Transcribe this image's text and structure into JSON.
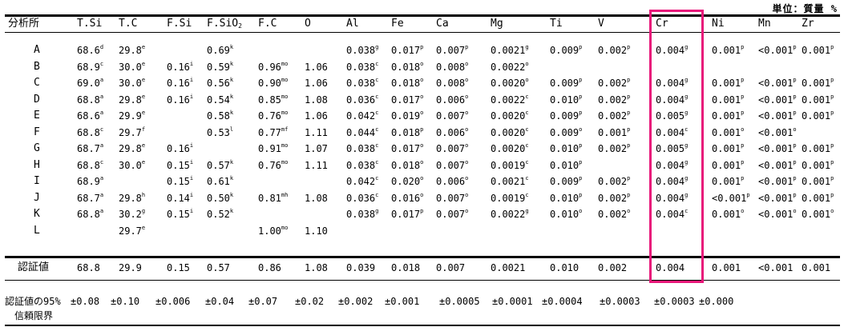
{
  "unit_label": "単位：質量 %",
  "headers": [
    {
      "key": "lab",
      "label": "分析所"
    },
    {
      "key": "tsi",
      "label": "T.Si"
    },
    {
      "key": "tc",
      "label": "T.C"
    },
    {
      "key": "fsi",
      "label": "F.Si"
    },
    {
      "key": "fsio2",
      "label": "F.SiO",
      "sub": "2"
    },
    {
      "key": "fc",
      "label": "F.C"
    },
    {
      "key": "o",
      "label": "O"
    },
    {
      "key": "al",
      "label": "Al"
    },
    {
      "key": "fe",
      "label": "Fe"
    },
    {
      "key": "ca",
      "label": "Ca"
    },
    {
      "key": "mg",
      "label": "Mg"
    },
    {
      "key": "ti",
      "label": "Ti"
    },
    {
      "key": "v",
      "label": "V"
    },
    {
      "key": "cr",
      "label": "Cr"
    },
    {
      "key": "ni",
      "label": "Ni"
    },
    {
      "key": "mn",
      "label": "Mn"
    },
    {
      "key": "zr",
      "label": "Zr"
    }
  ],
  "rows": [
    {
      "lab": "A",
      "cells": [
        [
          "68.6",
          "d"
        ],
        [
          "29.8",
          "e"
        ],
        [
          "",
          ""
        ],
        [
          "0.69",
          "k"
        ],
        [
          "",
          ""
        ],
        [
          "",
          ""
        ],
        [
          "0.038",
          "g"
        ],
        [
          "0.017",
          "p"
        ],
        [
          "0.007",
          "p"
        ],
        [
          "0.0021",
          "g"
        ],
        [
          "0.009",
          "p"
        ],
        [
          "0.002",
          "p"
        ],
        [
          "0.004",
          "g"
        ],
        [
          "0.001",
          "p"
        ],
        [
          "<0.001",
          "p"
        ],
        [
          "0.001",
          "p"
        ]
      ]
    },
    {
      "lab": "B",
      "cells": [
        [
          "68.9",
          "c"
        ],
        [
          "30.0",
          "e"
        ],
        [
          "0.16",
          "i"
        ],
        [
          "0.59",
          "k"
        ],
        [
          "0.96",
          "mo"
        ],
        [
          "1.06",
          ""
        ],
        [
          "0.038",
          "c"
        ],
        [
          "0.018",
          "o"
        ],
        [
          "0.008",
          "o"
        ],
        [
          "0.0022",
          "o"
        ],
        [
          "",
          ""
        ],
        [
          "",
          ""
        ],
        [
          "",
          ""
        ],
        [
          "",
          ""
        ],
        [
          "",
          ""
        ],
        [
          "",
          ""
        ]
      ]
    },
    {
      "lab": "C",
      "cells": [
        [
          "69.0",
          "a"
        ],
        [
          "30.0",
          "e"
        ],
        [
          "0.16",
          "i"
        ],
        [
          "0.56",
          "k"
        ],
        [
          "0.90",
          "mo"
        ],
        [
          "1.06",
          ""
        ],
        [
          "0.038",
          "c"
        ],
        [
          "0.018",
          "o"
        ],
        [
          "0.008",
          "o"
        ],
        [
          "0.0020",
          "o"
        ],
        [
          "0.009",
          "p"
        ],
        [
          "0.002",
          "p"
        ],
        [
          "0.004",
          "g"
        ],
        [
          "0.001",
          "p"
        ],
        [
          "<0.001",
          "p"
        ],
        [
          "0.001",
          "p"
        ]
      ]
    },
    {
      "lab": "D",
      "cells": [
        [
          "68.8",
          "a"
        ],
        [
          "29.8",
          "e"
        ],
        [
          "0.16",
          "i"
        ],
        [
          "0.54",
          "k"
        ],
        [
          "0.85",
          "mo"
        ],
        [
          "1.08",
          ""
        ],
        [
          "0.036",
          "c"
        ],
        [
          "0.017",
          "o"
        ],
        [
          "0.006",
          "o"
        ],
        [
          "0.0022",
          "c"
        ],
        [
          "0.010",
          "p"
        ],
        [
          "0.002",
          "p"
        ],
        [
          "0.004",
          "g"
        ],
        [
          "0.001",
          "p"
        ],
        [
          "<0.001",
          "p"
        ],
        [
          "0.001",
          "p"
        ]
      ]
    },
    {
      "lab": "E",
      "cells": [
        [
          "68.6",
          "a"
        ],
        [
          "29.9",
          "e"
        ],
        [
          "",
          ""
        ],
        [
          "0.58",
          "k"
        ],
        [
          "0.76",
          "mo"
        ],
        [
          "1.06",
          ""
        ],
        [
          "0.042",
          "c"
        ],
        [
          "0.019",
          "o"
        ],
        [
          "0.007",
          "o"
        ],
        [
          "0.0020",
          "c"
        ],
        [
          "0.009",
          "p"
        ],
        [
          "0.002",
          "p"
        ],
        [
          "0.005",
          "g"
        ],
        [
          "0.001",
          "p"
        ],
        [
          "<0.001",
          "p"
        ],
        [
          "0.001",
          "p"
        ]
      ]
    },
    {
      "lab": "F",
      "cells": [
        [
          "68.8",
          "c"
        ],
        [
          "29.7",
          "f"
        ],
        [
          "",
          ""
        ],
        [
          "0.53",
          "l"
        ],
        [
          "0.77",
          "mf"
        ],
        [
          "1.11",
          ""
        ],
        [
          "0.044",
          "c"
        ],
        [
          "0.018",
          "p"
        ],
        [
          "0.006",
          "o"
        ],
        [
          "0.0020",
          "c"
        ],
        [
          "0.009",
          "o"
        ],
        [
          "0.001",
          "p"
        ],
        [
          "0.004",
          "c"
        ],
        [
          "0.001",
          "o"
        ],
        [
          "<0.001",
          "o"
        ],
        [
          "",
          ""
        ]
      ]
    },
    {
      "lab": "G",
      "cells": [
        [
          "68.7",
          "a"
        ],
        [
          "29.8",
          "e"
        ],
        [
          "0.16",
          "i"
        ],
        [
          "",
          ""
        ],
        [
          "0.91",
          "mo"
        ],
        [
          "1.07",
          ""
        ],
        [
          "0.038",
          "c"
        ],
        [
          "0.017",
          "o"
        ],
        [
          "0.007",
          "o"
        ],
        [
          "0.0020",
          "c"
        ],
        [
          "0.010",
          "p"
        ],
        [
          "0.002",
          "p"
        ],
        [
          "0.005",
          "g"
        ],
        [
          "0.001",
          "p"
        ],
        [
          "<0.001",
          "p"
        ],
        [
          "0.001",
          "p"
        ]
      ]
    },
    {
      "lab": "H",
      "cells": [
        [
          "68.8",
          "c"
        ],
        [
          "30.0",
          "e"
        ],
        [
          "0.15",
          "i"
        ],
        [
          "0.57",
          "k"
        ],
        [
          "0.76",
          "mo"
        ],
        [
          "1.11",
          ""
        ],
        [
          "0.038",
          "c"
        ],
        [
          "0.018",
          "o"
        ],
        [
          "0.007",
          "o"
        ],
        [
          "0.0019",
          "c"
        ],
        [
          "0.010",
          "p"
        ],
        [
          "",
          ""
        ],
        [
          "0.004",
          "g"
        ],
        [
          "0.001",
          "p"
        ],
        [
          "<0.001",
          "p"
        ],
        [
          "0.001",
          "p"
        ]
      ]
    },
    {
      "lab": "I",
      "cells": [
        [
          "68.9",
          "a"
        ],
        [
          "",
          ""
        ],
        [
          "0.15",
          "i"
        ],
        [
          "0.61",
          "k"
        ],
        [
          "",
          ""
        ],
        [
          "",
          ""
        ],
        [
          "0.042",
          "c"
        ],
        [
          "0.020",
          "o"
        ],
        [
          "0.006",
          "o"
        ],
        [
          "0.0021",
          "c"
        ],
        [
          "0.009",
          "p"
        ],
        [
          "0.002",
          "p"
        ],
        [
          "0.004",
          "g"
        ],
        [
          "0.001",
          "p"
        ],
        [
          "<0.001",
          "p"
        ],
        [
          "0.001",
          "p"
        ]
      ]
    },
    {
      "lab": "J",
      "cells": [
        [
          "68.7",
          "a"
        ],
        [
          "29.8",
          "h"
        ],
        [
          "0.14",
          "i"
        ],
        [
          "0.50",
          "k"
        ],
        [
          "0.81",
          "mh"
        ],
        [
          "1.08",
          ""
        ],
        [
          "0.036",
          "c"
        ],
        [
          "0.016",
          "o"
        ],
        [
          "0.007",
          "o"
        ],
        [
          "0.0019",
          "c"
        ],
        [
          "0.010",
          "p"
        ],
        [
          "0.002",
          "p"
        ],
        [
          "0.004",
          "g"
        ],
        [
          "<0.001",
          "p"
        ],
        [
          "<0.001",
          "p"
        ],
        [
          "0.001",
          "p"
        ]
      ]
    },
    {
      "lab": "K",
      "cells": [
        [
          "68.8",
          "a"
        ],
        [
          "30.2",
          "g"
        ],
        [
          "0.15",
          "i"
        ],
        [
          "0.52",
          "k"
        ],
        [
          "",
          ""
        ],
        [
          "",
          ""
        ],
        [
          "0.038",
          "g"
        ],
        [
          "0.017",
          "p"
        ],
        [
          "0.007",
          "o"
        ],
        [
          "0.0022",
          "g"
        ],
        [
          "0.010",
          "o"
        ],
        [
          "0.002",
          "o"
        ],
        [
          "0.004",
          "c"
        ],
        [
          "0.001",
          "o"
        ],
        [
          "<0.001",
          "o"
        ],
        [
          "0.001",
          "o"
        ]
      ]
    },
    {
      "lab": "L",
      "cells": [
        [
          "",
          ""
        ],
        [
          "29.7",
          "e"
        ],
        [
          "",
          ""
        ],
        [
          "",
          ""
        ],
        [
          "1.00",
          "mo"
        ],
        [
          "1.10",
          ""
        ],
        [
          "",
          ""
        ],
        [
          "",
          ""
        ],
        [
          "",
          ""
        ],
        [
          "",
          ""
        ],
        [
          "",
          ""
        ],
        [
          "",
          ""
        ],
        [
          "",
          ""
        ],
        [
          "",
          ""
        ],
        [
          "",
          ""
        ],
        [
          "",
          ""
        ]
      ]
    }
  ],
  "certified": {
    "label": "認証値",
    "values": [
      "68.8",
      "29.9",
      "0.15",
      "0.57",
      "0.86",
      "1.08",
      "0.039",
      "0.018",
      "0.007",
      "0.0021",
      "0.010",
      "0.002",
      "0.004",
      "0.001",
      "<0.001",
      "0.001"
    ]
  },
  "confidence": {
    "label_line1": "認証値の95%",
    "label_line2": "信頼限界",
    "values": [
      "±0.08",
      "±0.10",
      "±0.006",
      "±0.04",
      "±0.07",
      "±0.02",
      "±0.002",
      "±0.001",
      "±0.0005",
      "±0.0001",
      "±0.0004",
      "±0.0003",
      "±0.0003",
      "±0.000"
    ]
  },
  "colors": {
    "highlight": "#e8177a",
    "text": "#000000"
  }
}
